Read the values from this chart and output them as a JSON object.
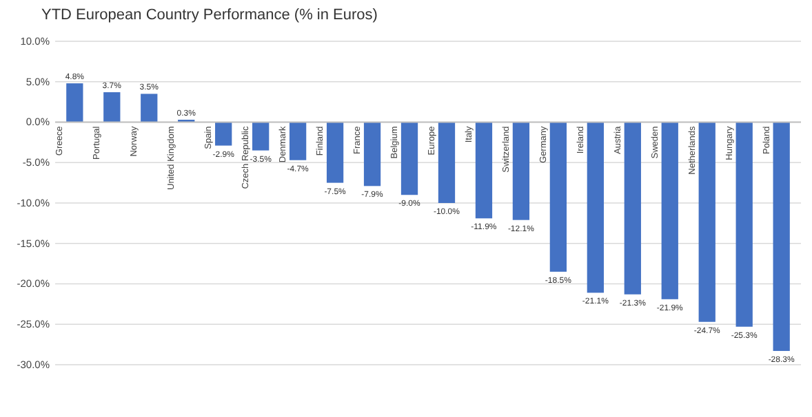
{
  "chart_data": {
    "type": "bar",
    "title": "YTD European Country Performance (% in Euros)",
    "categories": [
      "Greece",
      "Portugal",
      "Norway",
      "United Kingdom",
      "Spain",
      "Czech Republic",
      "Denmark",
      "Finland",
      "France",
      "Belgium",
      "Europe",
      "Italy",
      "Switzerland",
      "Germany",
      "Ireland",
      "Austria",
      "Sweden",
      "Netherlands",
      "Hungary",
      "Poland"
    ],
    "values": [
      4.8,
      3.7,
      3.5,
      0.3,
      -2.9,
      -3.5,
      -4.7,
      -7.5,
      -7.9,
      -9.0,
      -10.0,
      -11.9,
      -12.1,
      -18.5,
      -21.1,
      -21.3,
      -21.9,
      -24.7,
      -25.3,
      -28.3
    ],
    "value_labels": [
      "4.8%",
      "3.7%",
      "3.5%",
      "0.3%",
      "-2.9%",
      "-3.5%",
      "-4.7%",
      "-7.5%",
      "-7.9%",
      "-9.0%",
      "-10.0%",
      "-11.9%",
      "-12.1%",
      "-18.5%",
      "-21.1%",
      "-21.3%",
      "-21.9%",
      "-24.7%",
      "-25.3%",
      "-28.3%"
    ],
    "color": "#4472c4",
    "ylim": [
      -30,
      10
    ],
    "yticks": [
      {
        "value": -30,
        "label": "-30.0%"
      },
      {
        "value": -25,
        "label": "-25.0%"
      },
      {
        "value": -20,
        "label": "-20.0%"
      },
      {
        "value": -15,
        "label": "-15.0%"
      },
      {
        "value": -10,
        "label": "-10.0%"
      },
      {
        "value": -5,
        "label": "-5.0%"
      },
      {
        "value": 0,
        "label": "0.0%"
      },
      {
        "value": 5,
        "label": "5.0%"
      },
      {
        "value": 10,
        "label": "10.0%"
      }
    ],
    "grid": "y"
  }
}
